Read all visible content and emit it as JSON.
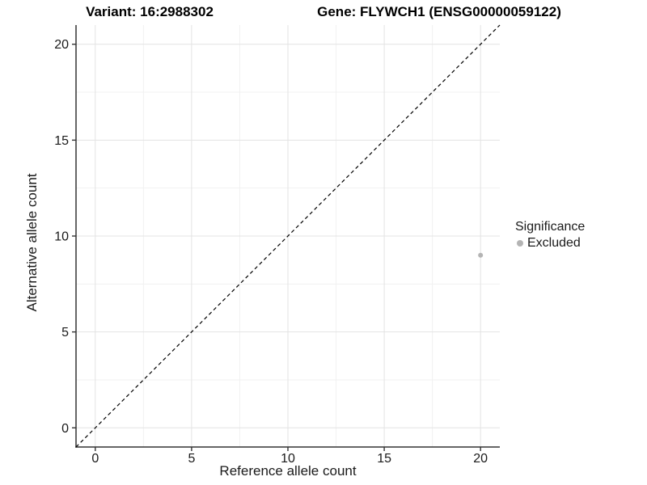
{
  "chart_data": {
    "type": "scatter",
    "title_left": "Variant: 16:2988302",
    "title_right": "Gene: FLYWCH1 (ENSG00000059122)",
    "xlabel": "Reference allele count",
    "ylabel": "Alternative allele count",
    "xlim": [
      -1,
      21
    ],
    "ylim": [
      -1,
      21
    ],
    "xticks": [
      0,
      5,
      10,
      15,
      20
    ],
    "yticks": [
      0,
      5,
      10,
      15,
      20
    ],
    "xminor": [
      2.5,
      7.5,
      12.5,
      17.5
    ],
    "yminor": [
      2.5,
      7.5,
      12.5,
      17.5
    ],
    "grid": "major+minor",
    "series": [
      {
        "name": "Excluded",
        "color": "#b4b4b4",
        "points": [
          {
            "x": 20,
            "y": 9
          }
        ]
      }
    ],
    "reference_line": {
      "type": "identity y=x",
      "from": [
        -1,
        -1
      ],
      "to": [
        21,
        21
      ],
      "style": "dashed",
      "color": "#000000"
    },
    "legend": {
      "title": "Significance",
      "position": "right",
      "entries": [
        {
          "label": "Excluded",
          "color": "#b4b4b4"
        }
      ]
    }
  },
  "colors": {
    "background": "#ffffff",
    "grid_major": "#e3e3e3",
    "grid_minor": "#f1f1f1",
    "axis_line": "#333333",
    "tick_mark": "#333333",
    "tick_label": "#1a1a1a"
  }
}
